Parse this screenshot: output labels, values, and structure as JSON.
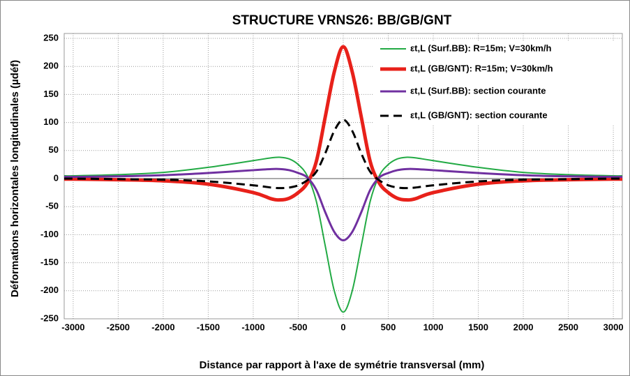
{
  "chart_data": {
    "type": "line",
    "title": "STRUCTURE VRNS26:  BB/GB/GNT",
    "x_label": "Distance par rapport à l'axe de symétrie  transversal (mm)",
    "y_label": "Déformations horizontales longitudinales (µdéf)",
    "x": [
      -3100,
      -3000,
      -2500,
      -2000,
      -1500,
      -1000,
      -800,
      -700,
      -600,
      -500,
      -400,
      -300,
      -200,
      -100,
      0,
      100,
      200,
      300,
      400,
      500,
      600,
      700,
      800,
      1000,
      1500,
      2000,
      2500,
      3000,
      3100
    ],
    "series": [
      {
        "name": "εt,L (Surf.BB): R=15m; V=30km/h",
        "color": "#22aa44",
        "width": 2,
        "dash": false,
        "values": [
          5,
          5,
          7,
          11,
          20,
          32,
          37,
          38,
          35,
          25,
          5,
          -40,
          -120,
          -200,
          -238,
          -200,
          -120,
          -40,
          5,
          25,
          35,
          38,
          37,
          32,
          20,
          11,
          7,
          5,
          5
        ]
      },
      {
        "name": "εt,L (GB/GNT): R=15m; V=30km/h",
        "color": "#e8211a",
        "width": 5,
        "dash": false,
        "values": [
          -1,
          -1,
          -2,
          -4,
          -10,
          -25,
          -36,
          -38,
          -35,
          -25,
          -8,
          30,
          110,
          190,
          235,
          190,
          110,
          30,
          -8,
          -25,
          -35,
          -38,
          -36,
          -25,
          -10,
          -4,
          -2,
          -1,
          -1
        ]
      },
      {
        "name": "εt,L (Surf.BB): section courante",
        "color": "#7030a0",
        "width": 3,
        "dash": false,
        "values": [
          3,
          3,
          4,
          6,
          10,
          15,
          17,
          17,
          15,
          10,
          2,
          -20,
          -60,
          -95,
          -110,
          -95,
          -60,
          -20,
          2,
          10,
          15,
          17,
          17,
          15,
          10,
          6,
          4,
          3,
          3
        ]
      },
      {
        "name": "εt,L (GB/GNT): section courante",
        "color": "#000000",
        "width": 3,
        "dash": true,
        "values": [
          0,
          0,
          -1,
          -2,
          -5,
          -12,
          -16,
          -17,
          -16,
          -12,
          -3,
          12,
          45,
          85,
          105,
          85,
          45,
          12,
          -3,
          -12,
          -16,
          -17,
          -16,
          -12,
          -5,
          -2,
          -1,
          0,
          0
        ]
      }
    ],
    "xlim": [
      -3100,
      3100
    ],
    "ylim": [
      -250,
      250
    ],
    "xticks": [
      -3000,
      -2500,
      -2000,
      -1500,
      -1000,
      -500,
      0,
      500,
      1000,
      1500,
      2000,
      2500,
      3000
    ],
    "yticks": [
      -250,
      -200,
      -150,
      -100,
      -50,
      0,
      50,
      100,
      150,
      200,
      250
    ],
    "grid": true,
    "legend": "upper right"
  }
}
